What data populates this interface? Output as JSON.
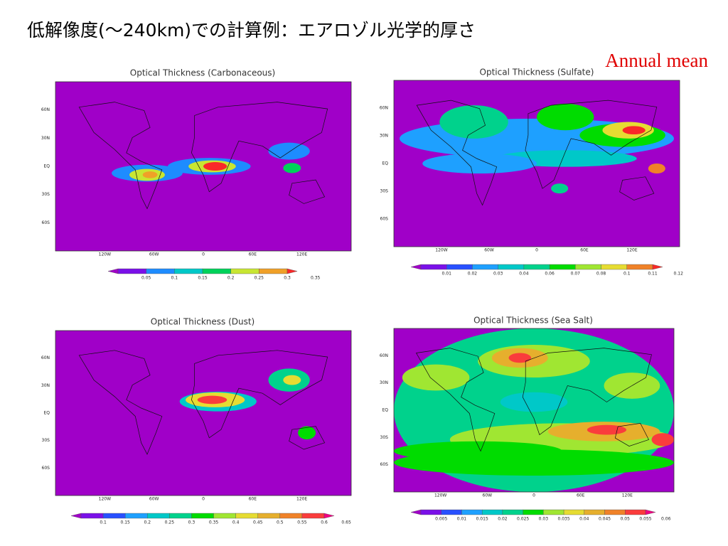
{
  "title": "低解像度(～240km)での計算例：エアロゾル光学的厚さ",
  "annotation": "Annual mean",
  "panels": [
    {
      "title": "Optical Thickness (Carbonaceous)",
      "lat_labels": [
        "60N",
        "30N",
        "EQ",
        "30S",
        "60S"
      ],
      "lon_labels": [
        "120W",
        "60W",
        "0",
        "60E",
        "120E"
      ],
      "colorbar": {
        "labels": [
          "0.05",
          "0.1",
          "0.15",
          "0.2",
          "0.25",
          "0.3",
          "0.35"
        ],
        "colors": [
          "#a000c8",
          "#7a10e8",
          "#1e8cff",
          "#00c8c8",
          "#00d25a",
          "#c8e632",
          "#f0a028",
          "#fa2828"
        ]
      }
    },
    {
      "title": "Optical Thickness (Sulfate)",
      "lat_labels": [
        "60N",
        "30N",
        "EQ",
        "30S",
        "60S"
      ],
      "lon_labels": [
        "120W",
        "60W",
        "0",
        "60E",
        "120E"
      ],
      "colorbar": {
        "labels": [
          "0.01",
          "0.02",
          "0.03",
          "0.04",
          "0.06",
          "0.07",
          "0.08",
          "0.1",
          "0.11",
          "0.12"
        ],
        "colors": [
          "#a000c8",
          "#7a10e8",
          "#2850ff",
          "#1ea0ff",
          "#00c8c8",
          "#00d28c",
          "#00dc00",
          "#a0e632",
          "#e6dc32",
          "#f08228",
          "#fa2828"
        ]
      }
    },
    {
      "title": "Optical Thickness (Dust)",
      "lat_labels": [
        "60N",
        "30N",
        "EQ",
        "30S",
        "60S"
      ],
      "lon_labels": [
        "120W",
        "60W",
        "0",
        "60E",
        "120E"
      ],
      "colorbar": {
        "labels": [
          "0.1",
          "0.15",
          "0.2",
          "0.25",
          "0.3",
          "0.35",
          "0.4",
          "0.45",
          "0.5",
          "0.55",
          "0.6",
          "0.65"
        ],
        "colors": [
          "#a000c8",
          "#7a10e8",
          "#2850ff",
          "#1ea0ff",
          "#00c8c8",
          "#00d28c",
          "#00dc00",
          "#a0e632",
          "#e6dc32",
          "#e6af2d",
          "#f08228",
          "#fa3c3c",
          "#f00082"
        ]
      }
    },
    {
      "title": "Optical Thickness (Sea Salt)",
      "lat_labels": [
        "60N",
        "30N",
        "EQ",
        "30S",
        "60S"
      ],
      "lon_labels": [
        "120W",
        "60W",
        "0",
        "60E",
        "120E"
      ],
      "colorbar": {
        "labels": [
          "0.005",
          "0.01",
          "0.015",
          "0.02",
          "0.025",
          "0.03",
          "0.035",
          "0.04",
          "0.045",
          "0.05",
          "0.055",
          "0.06"
        ],
        "colors": [
          "#a000c8",
          "#7a10e8",
          "#2850ff",
          "#1ea0ff",
          "#00c8c8",
          "#00d28c",
          "#00dc00",
          "#a0e632",
          "#e6dc32",
          "#e6af2d",
          "#f08228",
          "#fa3c3c",
          "#f00082"
        ]
      }
    }
  ]
}
